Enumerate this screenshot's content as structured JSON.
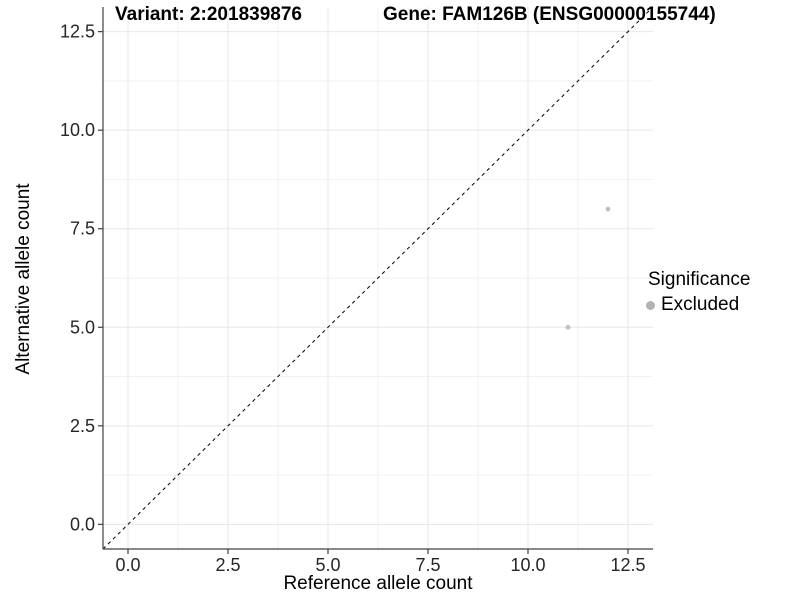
{
  "titles": {
    "left": "Variant: 2:201839876",
    "right": "Gene: FAM126B (ENSG00000155744)"
  },
  "chart_data": {
    "type": "scatter",
    "xlabel": "Reference allele count",
    "ylabel": "Alternative allele count",
    "xlim": [
      -0.625,
      13.125
    ],
    "ylim": [
      -0.625,
      13.125
    ],
    "xticks": [
      0.0,
      2.5,
      5.0,
      7.5,
      10.0,
      12.5
    ],
    "yticks": [
      0.0,
      2.5,
      5.0,
      7.5,
      10.0,
      12.5
    ],
    "tick_decimals": 1,
    "grid": {
      "major": true,
      "minor": true
    },
    "reference_line": {
      "type": "identity-diagonal",
      "style": "dashed",
      "color": "#000000"
    },
    "series": [
      {
        "name": "Excluded",
        "color": "#bfbfbf",
        "points": [
          {
            "x": 12,
            "y": 8
          },
          {
            "x": 11,
            "y": 5
          }
        ]
      }
    ],
    "legend": {
      "title": "Significance",
      "position": "right",
      "items": [
        {
          "label": "Excluded",
          "color": "#b3b3b3"
        }
      ]
    }
  },
  "style_colors": {
    "grid_major": "#e7e7e7",
    "grid_minor": "#f2f2f2",
    "axis_line": "#404040",
    "tick_label": "#262626"
  }
}
